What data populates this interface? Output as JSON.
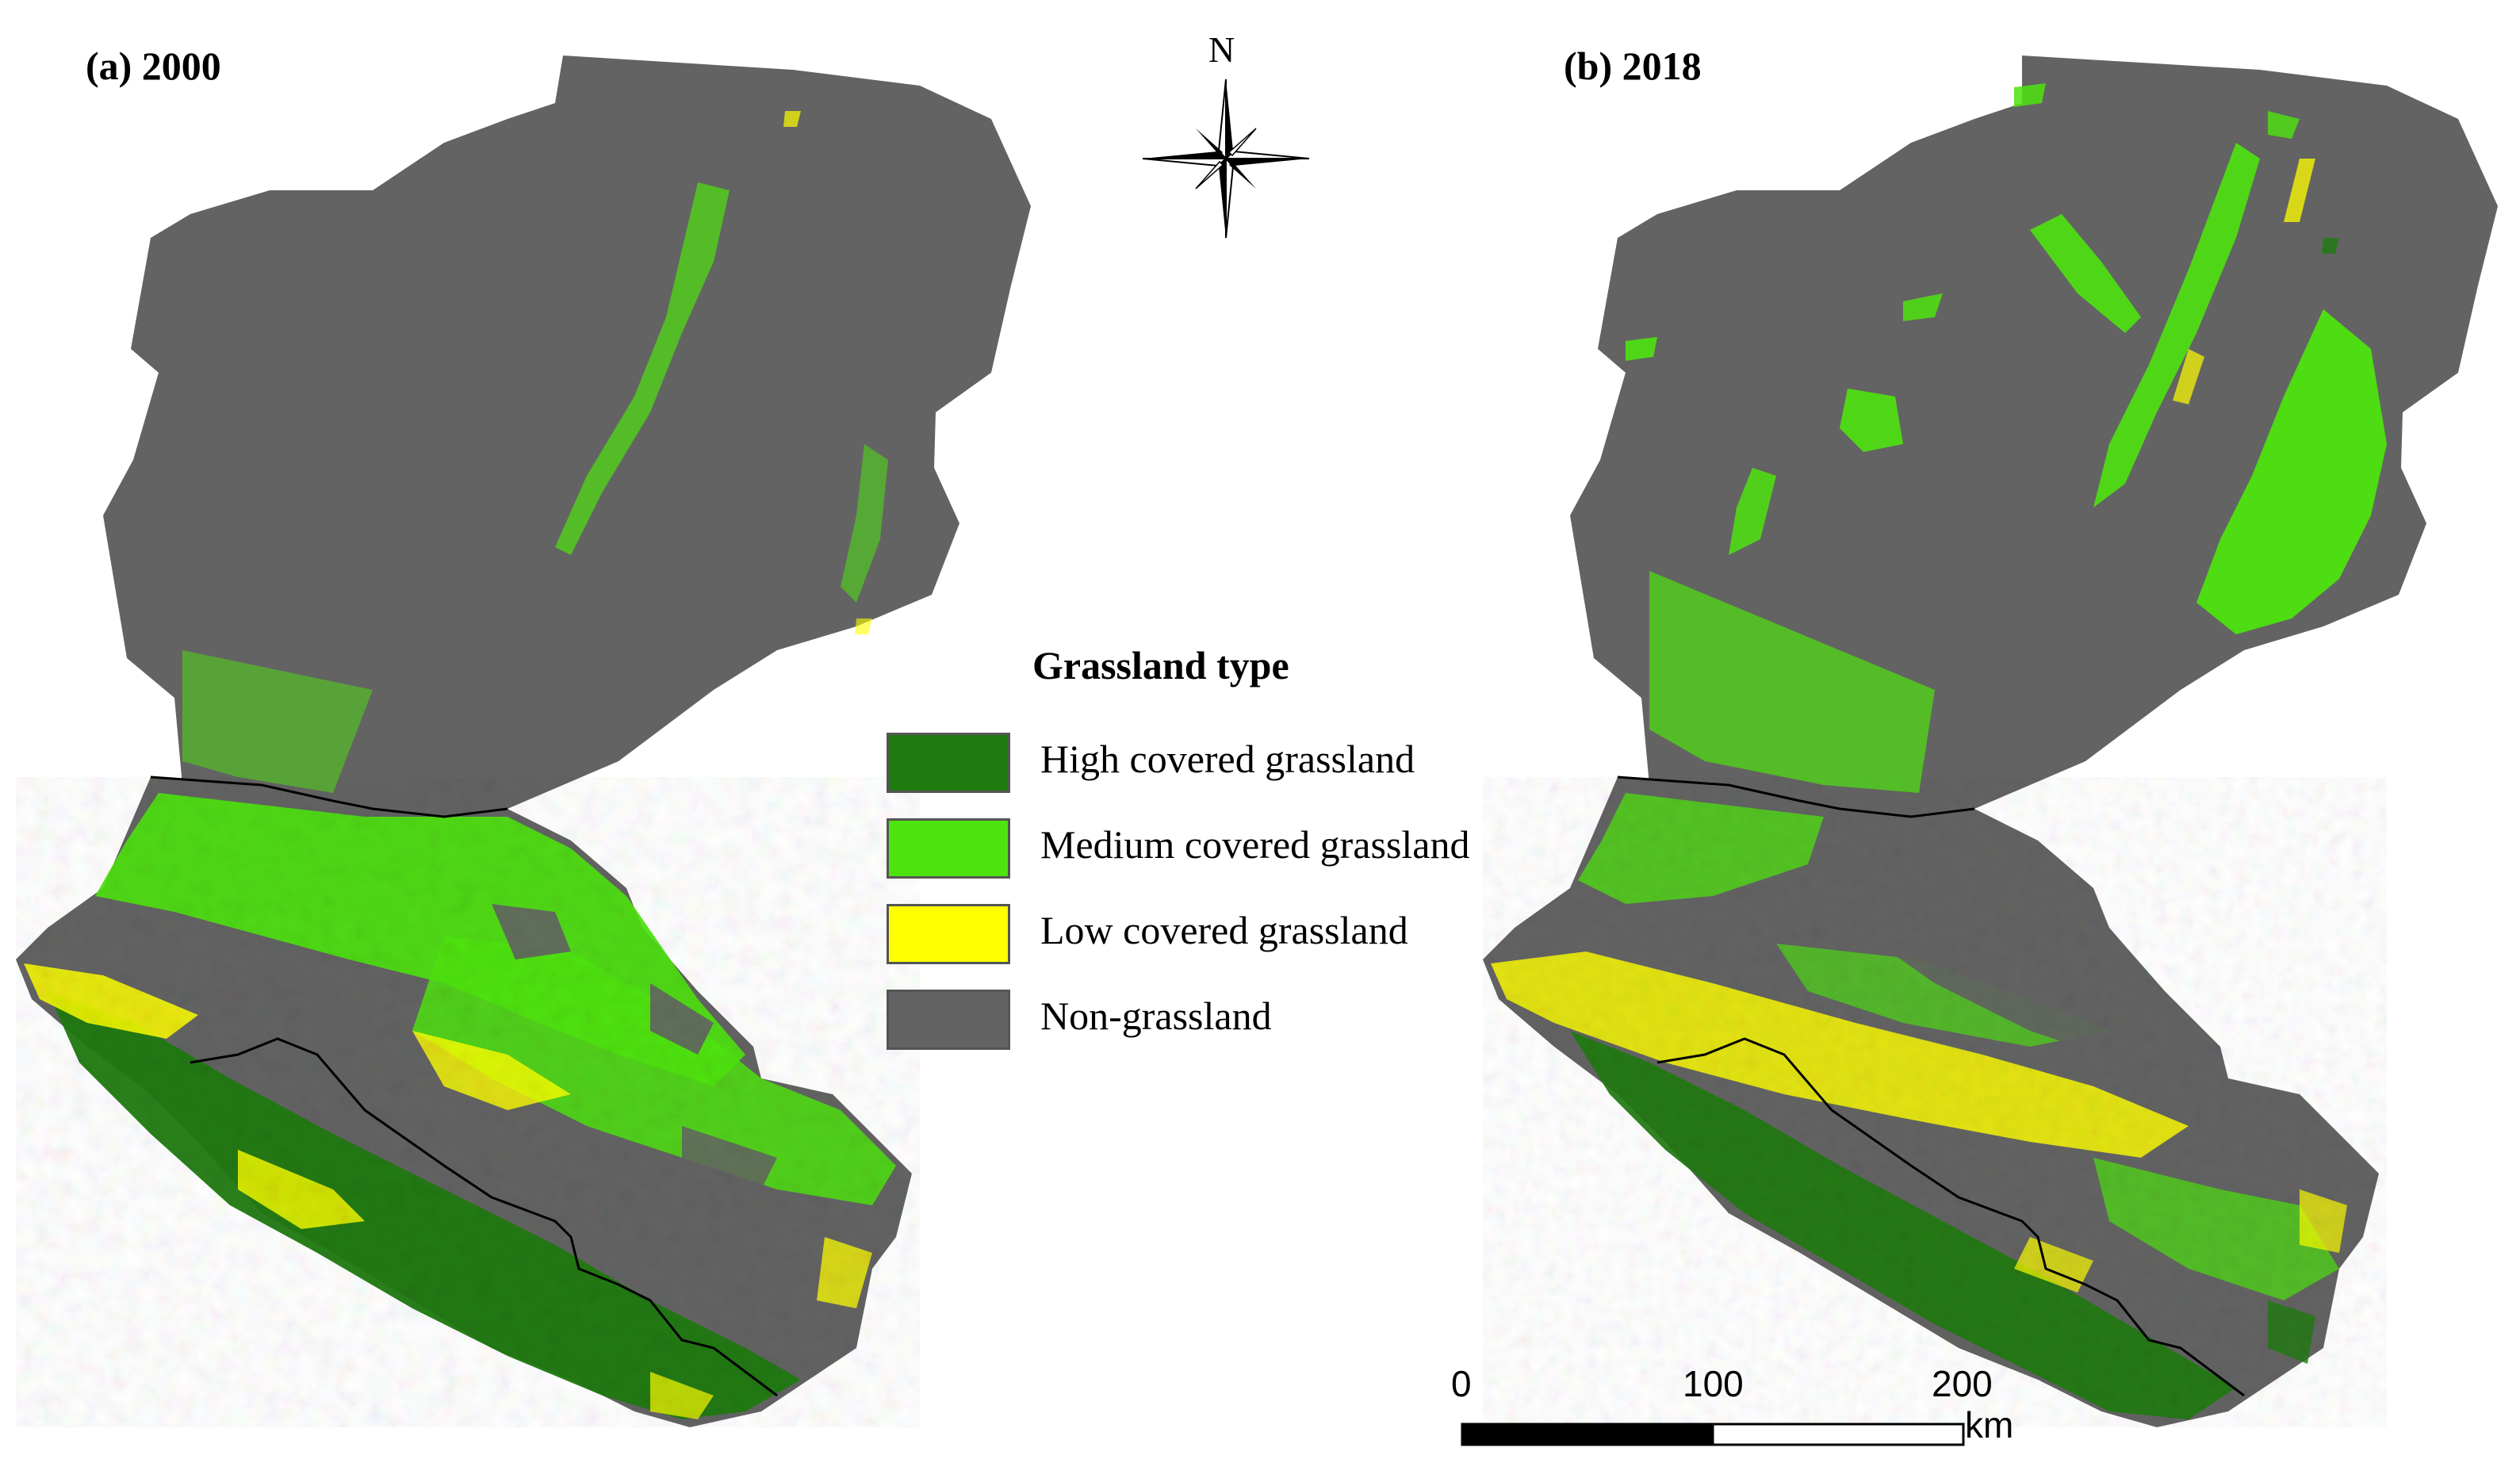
{
  "panels": [
    {
      "label": "(a) 2000",
      "year": 2000
    },
    {
      "label": "(b) 2018",
      "year": 2018
    }
  ],
  "north_arrow": {
    "letter": "N"
  },
  "legend": {
    "title": "Grassland type",
    "items": [
      {
        "label": "High covered grassland",
        "color": "#1f7a0f"
      },
      {
        "label": "Medium covered grassland",
        "color": "#4de30e"
      },
      {
        "label": "Low covered grassland",
        "color": "#ffff00"
      },
      {
        "label": "Non-grassland",
        "color": "#636363"
      }
    ]
  },
  "scale_bar": {
    "ticks": [
      "0",
      "100",
      "200"
    ],
    "unit": "km"
  },
  "colors": {
    "non_grassland": "#636363",
    "high": "#1f7a0f",
    "medium": "#4de30e",
    "low": "#ffff00",
    "boundary": "#000000"
  }
}
